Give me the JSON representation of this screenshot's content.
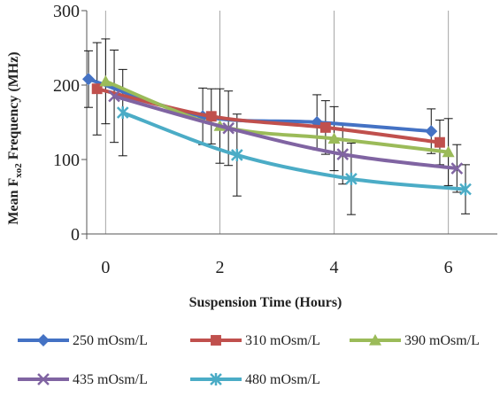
{
  "chart_data": {
    "type": "line",
    "title": "",
    "xlabel": "Suspension Time (Hours)",
    "ylabel": {
      "prefix": "Mean F",
      "sub": "xo2",
      "suffix": " Frequency (MHz)"
    },
    "xlim": [
      -0.3,
      6.3
    ],
    "ylim": [
      0,
      300
    ],
    "x_ticks": [
      0,
      2,
      4,
      6
    ],
    "y_ticks": [
      0,
      100,
      200,
      300
    ],
    "grid": "vertical",
    "legend_position": "bottom",
    "series": [
      {
        "name": "250 mOsm/L",
        "color": "#4472C4",
        "marker": "diamond",
        "x": [
          -0.3,
          1.7,
          3.7,
          5.7
        ],
        "y": [
          208,
          158,
          150,
          138
        ],
        "err": [
          38,
          38,
          37,
          30
        ]
      },
      {
        "name": "310 mOsm/L",
        "color": "#C0504D",
        "marker": "square",
        "x": [
          -0.15,
          1.85,
          3.85,
          5.85
        ],
        "y": [
          195,
          158,
          143,
          123
        ],
        "err": [
          62,
          37,
          36,
          30
        ]
      },
      {
        "name": "390 mOsm/L",
        "color": "#9BBB59",
        "marker": "triangle",
        "x": [
          0,
          2,
          4,
          6
        ],
        "y": [
          205,
          145,
          128,
          110
        ],
        "err": [
          57,
          50,
          43,
          45
        ]
      },
      {
        "name": "435 mOsm/L",
        "color": "#8064A2",
        "marker": "x",
        "x": [
          0.15,
          2.15,
          4.15,
          6.15
        ],
        "y": [
          185,
          142,
          107,
          88
        ],
        "err": [
          62,
          50,
          40,
          32
        ]
      },
      {
        "name": "480 mOsm/L",
        "color": "#4BACC6",
        "marker": "star",
        "x": [
          0.3,
          2.3,
          4.3,
          6.3
        ],
        "y": [
          163,
          106,
          74,
          60
        ],
        "err": [
          58,
          55,
          48,
          33
        ]
      }
    ]
  }
}
